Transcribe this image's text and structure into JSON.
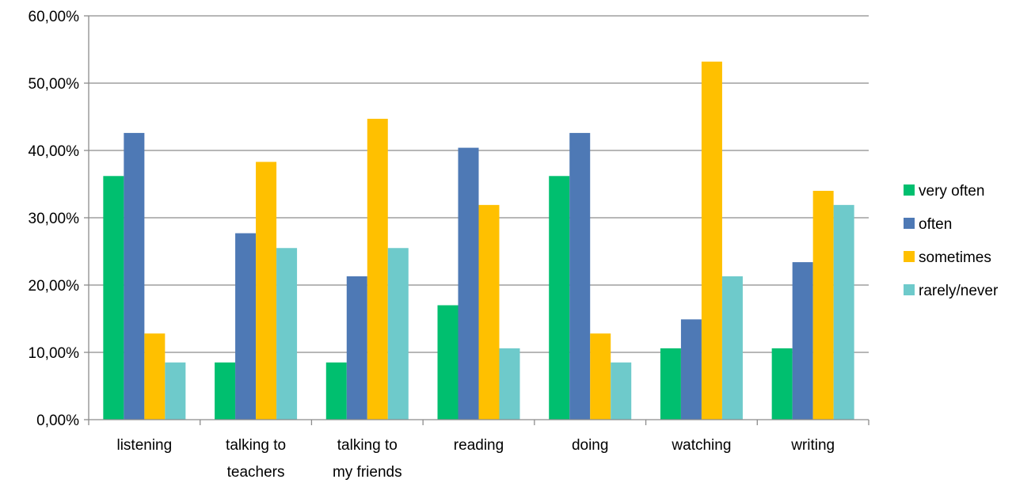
{
  "chart_data": {
    "type": "bar",
    "title": "",
    "xlabel": "",
    "ylabel": "",
    "categories": [
      [
        "listening"
      ],
      [
        "talking to",
        "teachers"
      ],
      [
        "talking to",
        "my friends"
      ],
      [
        "reading"
      ],
      [
        "doing"
      ],
      [
        "watching"
      ],
      [
        "writing"
      ]
    ],
    "series": [
      {
        "name": "very often",
        "color": "#00BF6F",
        "values": [
          36.2,
          8.5,
          8.5,
          17.0,
          36.2,
          10.6,
          10.6
        ]
      },
      {
        "name": "often",
        "color": "#4E79B5",
        "values": [
          42.6,
          27.7,
          21.3,
          40.4,
          42.6,
          14.9,
          23.4
        ]
      },
      {
        "name": "sometimes",
        "color": "#FFC000",
        "values": [
          12.8,
          38.3,
          44.7,
          31.9,
          12.8,
          53.2,
          34.0
        ]
      },
      {
        "name": "rarely/never",
        "color": "#6ECACB",
        "values": [
          8.5,
          25.5,
          25.5,
          10.6,
          8.5,
          21.3,
          31.9
        ]
      }
    ],
    "ylim": [
      0,
      60
    ],
    "yticks": [
      "0,00%",
      "10,00%",
      "20,00%",
      "30,00%",
      "40,00%",
      "50,00%",
      "60,00%"
    ],
    "grid": true,
    "legend_position": "right",
    "gridline_color": "#8C8C8C"
  }
}
